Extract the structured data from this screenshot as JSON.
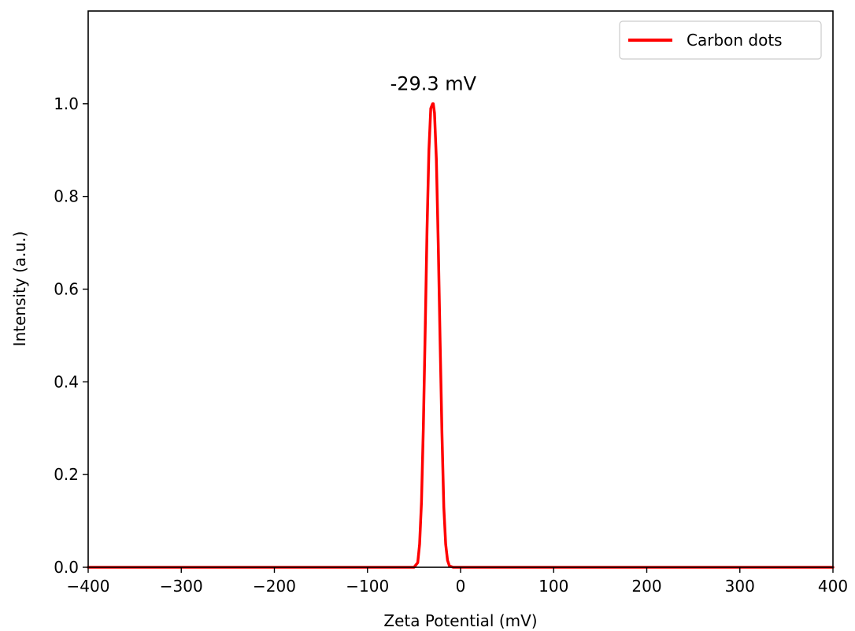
{
  "chart_data": {
    "type": "line",
    "xlabel": "Zeta Potential (mV)",
    "ylabel": "Intensity (a.u.)",
    "xlim": [
      -400,
      400
    ],
    "ylim": [
      0,
      1.2
    ],
    "xticks": [
      -400,
      -300,
      -200,
      -100,
      0,
      100,
      200,
      300,
      400
    ],
    "xtick_labels": [
      "−400",
      "−300",
      "−200",
      "−100",
      "0",
      "100",
      "200",
      "300",
      "400"
    ],
    "yticks": [
      0,
      0.2,
      0.4,
      0.6,
      0.8,
      1.0
    ],
    "ytick_labels": [
      "0.0",
      "0.2",
      "0.4",
      "0.6",
      "0.8",
      "1.0"
    ],
    "grid": false,
    "legend_position": "top-right",
    "series": [
      {
        "name": "Carbon dots",
        "color": "#ff0000",
        "x": [
          -400,
          -60,
          -50,
          -46,
          -44,
          -42,
          -40,
          -38,
          -36,
          -34,
          -32,
          -30,
          -29.3,
          -28,
          -26,
          -24,
          -22,
          -20,
          -18,
          -16,
          -14,
          -12,
          -8,
          0,
          400
        ],
        "y": [
          0,
          0,
          0,
          0.01,
          0.05,
          0.14,
          0.3,
          0.51,
          0.73,
          0.9,
          0.99,
          1.0,
          1.0,
          0.98,
          0.88,
          0.7,
          0.49,
          0.29,
          0.13,
          0.05,
          0.015,
          0.003,
          0,
          0,
          0
        ]
      }
    ],
    "annotations": [
      {
        "text": "-29.3 mV",
        "x": -29.3,
        "y": 1.04
      }
    ]
  }
}
